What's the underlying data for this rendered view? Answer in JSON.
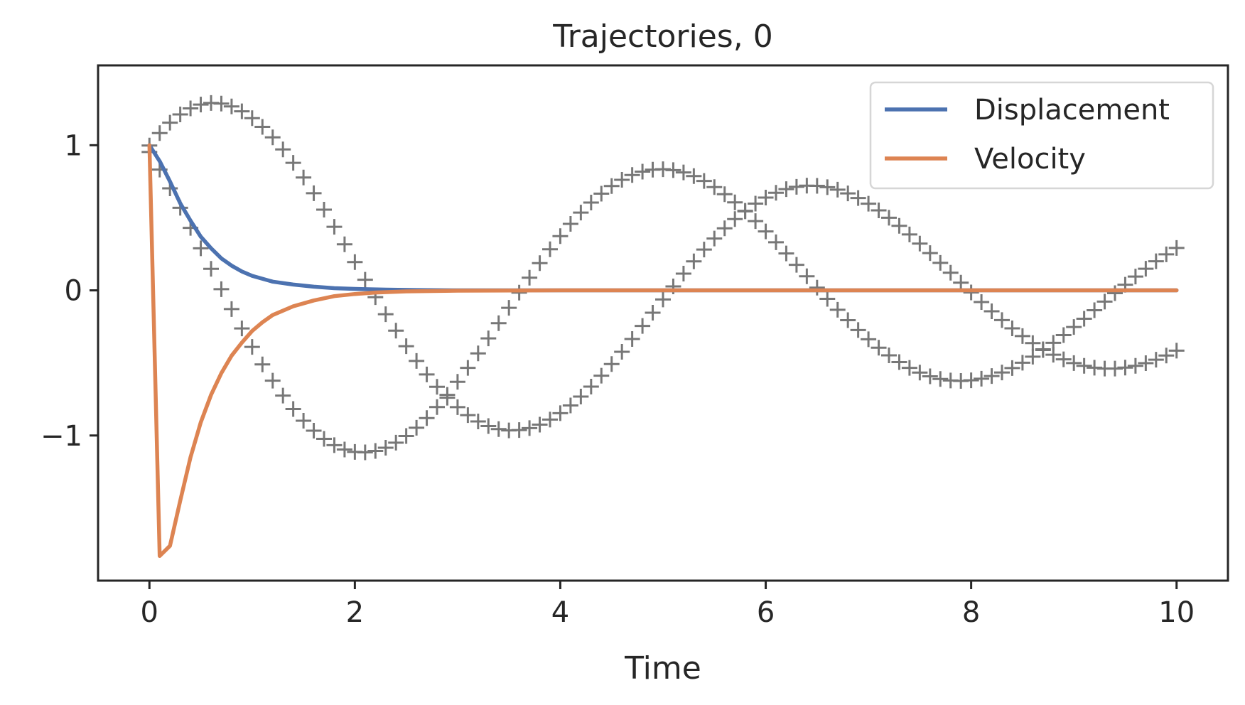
{
  "chart_data": {
    "type": "line",
    "title": "Trajectories, 0",
    "xlabel": "Time",
    "ylabel": "",
    "xlim": [
      -0.5,
      10.5
    ],
    "ylim": [
      -2.0,
      1.55
    ],
    "x_ticks": [
      0,
      2,
      4,
      6,
      8,
      10
    ],
    "x_tick_labels": [
      "0",
      "2",
      "4",
      "6",
      "8",
      "10"
    ],
    "y_ticks": [
      -1,
      0,
      1
    ],
    "y_tick_labels": [
      "−1",
      "0",
      "1"
    ],
    "grid": false,
    "legend_position": "top-right",
    "series": [
      {
        "name": "Displacement",
        "color": "#4c72b0",
        "x": [
          0,
          0.1,
          0.2,
          0.3,
          0.4,
          0.5,
          0.6,
          0.7,
          0.8,
          0.9,
          1.0,
          1.2,
          1.4,
          1.6,
          1.8,
          2.0,
          2.3,
          2.6,
          3.0,
          4.0,
          6.0,
          8.0,
          10.0
        ],
        "values": [
          1.0,
          0.89,
          0.75,
          0.6,
          0.48,
          0.37,
          0.29,
          0.22,
          0.17,
          0.13,
          0.1,
          0.06,
          0.04,
          0.025,
          0.015,
          0.01,
          0.005,
          0.002,
          0.0,
          0.0,
          0.0,
          0.0,
          0.0
        ]
      },
      {
        "name": "Velocity",
        "color": "#dd8452",
        "x": [
          0,
          0.1,
          0.2,
          0.3,
          0.4,
          0.5,
          0.6,
          0.7,
          0.8,
          0.9,
          1.0,
          1.1,
          1.2,
          1.4,
          1.6,
          1.8,
          2.0,
          2.2,
          2.5,
          3.0,
          4.0,
          6.0,
          8.0,
          10.0
        ],
        "values": [
          1.0,
          -1.83,
          -1.76,
          -1.45,
          -1.15,
          -0.91,
          -0.72,
          -0.57,
          -0.45,
          -0.36,
          -0.28,
          -0.22,
          -0.17,
          -0.11,
          -0.07,
          -0.04,
          -0.025,
          -0.015,
          -0.007,
          -0.002,
          0.0,
          0.0,
          0.0,
          0.0
        ]
      }
    ],
    "reference_markers": [
      {
        "marker": "+",
        "color": "#777777",
        "x_start": 0,
        "x_end": 10,
        "x_step": 0.1,
        "amplitude": 1.38,
        "frequency": 1.08,
        "phase": 0.808,
        "decay": 0.1
      },
      {
        "marker": "+",
        "color": "#777777",
        "x_start": 0,
        "x_end": 10,
        "x_step": 0.1,
        "amplitude": 1.38,
        "frequency": 1.08,
        "phase": 2.379,
        "decay": 0.1
      }
    ]
  }
}
